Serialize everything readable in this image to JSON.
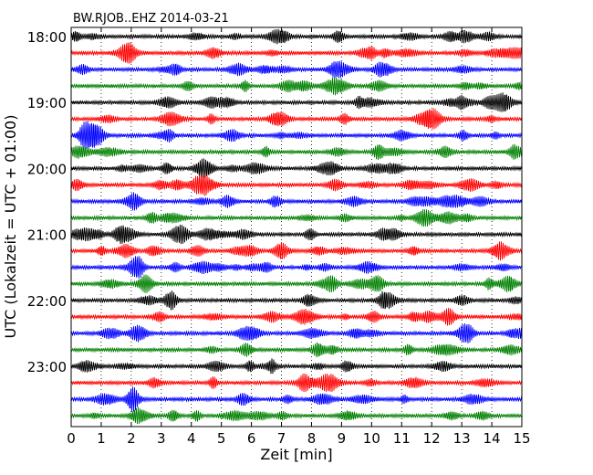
{
  "chart_data": {
    "type": "line",
    "title": "BW.RJOB..EHZ 2014-03-21",
    "xlabel": "Zeit  [min]",
    "ylabel": "UTC (Lokalzeit = UTC + 01:00)",
    "xlim": [
      0,
      15
    ],
    "x_ticks": [
      "0",
      "1",
      "2",
      "3",
      "4",
      "5",
      "6",
      "7",
      "8",
      "9",
      "10",
      "11",
      "12",
      "13",
      "14",
      "15"
    ],
    "y_ticks": [
      "18:00",
      "19:00",
      "20:00",
      "21:00",
      "22:00",
      "23:00"
    ],
    "start_time": "18:00",
    "trace_interval_min": 15,
    "trace_count": 24,
    "trace_colors": [
      "#000000",
      "#ff0000",
      "#0000ff",
      "#008000"
    ],
    "grid": "vertical dotted"
  }
}
